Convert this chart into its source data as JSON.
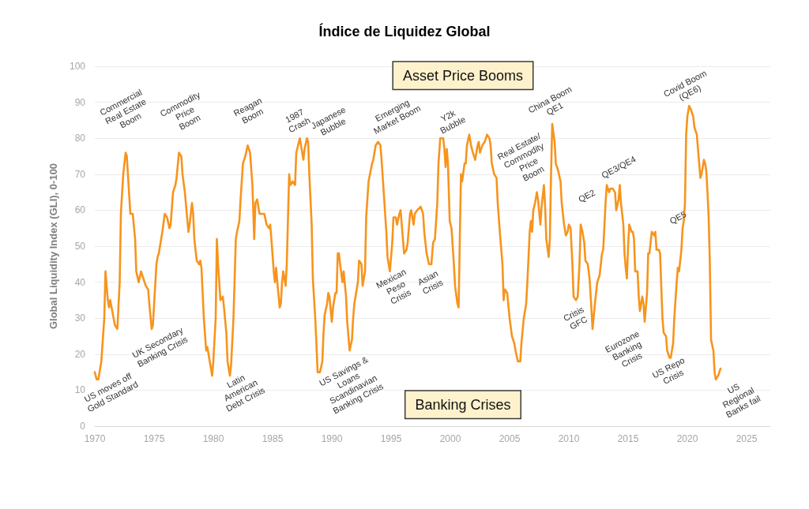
{
  "chart_data": {
    "type": "line",
    "title": "Índice de Liquidez Global",
    "ylabel": "Global Liquidity Index (GLI), 0-100",
    "x": [
      1970,
      1970.15,
      1970.3,
      1970.55,
      1970.8,
      1970.9,
      1971.1,
      1971.2,
      1971.3,
      1971.7,
      1971.9,
      1972.1,
      1972.2,
      1972.4,
      1972.6,
      1972.7,
      1973.0,
      1973.2,
      1973.4,
      1973.5,
      1973.7,
      1973.9,
      1974.0,
      1974.3,
      1974.5,
      1974.6,
      1974.8,
      1974.9,
      1975.2,
      1975.3,
      1975.4,
      1975.7,
      1975.9,
      1976.1,
      1976.3,
      1976.4,
      1976.6,
      1976.8,
      1976.9,
      1977.1,
      1977.3,
      1977.4,
      1977.6,
      1977.9,
      1978.0,
      1978.2,
      1978.3,
      1978.4,
      1978.6,
      1978.8,
      1978.9,
      1979.0,
      1979.2,
      1979.4,
      1979.5,
      1979.7,
      1979.9,
      1980.0,
      1980.2,
      1980.3,
      1980.4,
      1980.6,
      1980.8,
      1980.9,
      1981.1,
      1981.2,
      1981.4,
      1981.5,
      1981.7,
      1981.9,
      1982.0,
      1982.2,
      1982.3,
      1982.5,
      1982.7,
      1982.9,
      1983.1,
      1983.3,
      1983.45,
      1983.55,
      1983.7,
      1983.9,
      1984.1,
      1984.3,
      1984.5,
      1984.7,
      1984.8,
      1984.9,
      1985.1,
      1985.2,
      1985.3,
      1985.4,
      1985.6,
      1985.7,
      1985.8,
      1985.9,
      1986.1,
      1986.2,
      1986.4,
      1986.5,
      1986.7,
      1986.9,
      1987.0,
      1987.3,
      1987.4,
      1987.6,
      1987.7,
      1987.9,
      1988.0,
      1988.1,
      1988.3,
      1988.4,
      1988.6,
      1988.7,
      1988.8,
      1989.0,
      1989.2,
      1989.3,
      1989.4,
      1989.6,
      1989.7,
      1989.8,
      1990.0,
      1990.1,
      1990.3,
      1990.4,
      1990.5,
      1990.6,
      1990.7,
      1990.9,
      1991.0,
      1991.2,
      1991.3,
      1991.5,
      1991.7,
      1991.8,
      1991.9,
      1992.1,
      1992.2,
      1992.3,
      1992.5,
      1992.6,
      1992.8,
      1992.9,
      1993.1,
      1993.4,
      1993.5,
      1993.7,
      1993.9,
      1994.1,
      1994.2,
      1994.4,
      1994.6,
      1994.7,
      1994.9,
      1995.1,
      1995.2,
      1995.4,
      1995.5,
      1995.7,
      1995.8,
      1996.0,
      1996.1,
      1996.3,
      1996.4,
      1996.6,
      1996.7,
      1996.9,
      1997.0,
      1997.2,
      1997.5,
      1997.7,
      1997.8,
      1998.0,
      1998.2,
      1998.4,
      1998.55,
      1998.7,
      1998.9,
      1999.0,
      1999.15,
      1999.4,
      1999.5,
      1999.6,
      1999.7,
      1999.8,
      1999.95,
      2000.1,
      2000.3,
      2000.4,
      2000.6,
      2000.7,
      2000.8,
      2000.9,
      2001.0,
      2001.2,
      2001.3,
      2001.4,
      2001.6,
      2001.75,
      2001.9,
      2002.1,
      2002.3,
      2002.4,
      2002.5,
      2002.7,
      2002.9,
      2003.0,
      2003.1,
      2003.3,
      2003.4,
      2003.5,
      2003.7,
      2003.9,
      2004.0,
      2004.2,
      2004.4,
      2004.5,
      2004.6,
      2004.8,
      2005.0,
      2005.2,
      2005.4,
      2005.5,
      2005.7,
      2005.9,
      2006.0,
      2006.2,
      2006.4,
      2006.5,
      2006.7,
      2006.8,
      2006.9,
      2007.0,
      2007.15,
      2007.3,
      2007.4,
      2007.6,
      2007.7,
      2007.9,
      2008.0,
      2008.1,
      2008.3,
      2008.4,
      2008.5,
      2008.6,
      2008.8,
      2008.9,
      2009.1,
      2009.3,
      2009.4,
      2009.6,
      2009.75,
      2009.9,
      2010.0,
      2010.15,
      2010.3,
      2010.4,
      2010.6,
      2010.75,
      2010.9,
      2011.0,
      2011.15,
      2011.3,
      2011.4,
      2011.6,
      2011.75,
      2011.9,
      2012.0,
      2012.2,
      2012.4,
      2012.6,
      2012.8,
      2012.9,
      2013.1,
      2013.2,
      2013.4,
      2013.5,
      2013.7,
      2013.9,
      2014.0,
      2014.2,
      2014.3,
      2014.4,
      2014.6,
      2014.7,
      2014.8,
      2014.9,
      2015.0,
      2015.1,
      2015.3,
      2015.4,
      2015.5,
      2015.6,
      2015.8,
      2015.9,
      2016.0,
      2016.2,
      2016.3,
      2016.4,
      2016.6,
      2016.7,
      2016.8,
      2017.0,
      2017.2,
      2017.3,
      2017.4,
      2017.6,
      2017.7,
      2017.9,
      2018.0,
      2018.2,
      2018.3,
      2018.5,
      2018.6,
      2018.8,
      2018.9,
      2019.1,
      2019.2,
      2019.3,
      2019.5,
      2019.6,
      2019.7,
      2019.8,
      2019.9,
      2020.0,
      2020.15,
      2020.3,
      2020.5,
      2020.6,
      2020.8,
      2020.9,
      2021.1,
      2021.2,
      2021.4,
      2021.5,
      2021.6,
      2021.7,
      2021.8,
      2021.9,
      2022.0,
      2022.2,
      2022.3,
      2022.4,
      2022.6,
      2022.8
    ],
    "values": [
      15,
      13,
      13,
      18,
      30,
      43,
      35,
      33,
      35,
      28,
      27,
      40,
      59,
      70,
      76,
      75,
      59,
      59,
      52,
      43,
      40,
      43,
      42,
      39,
      38,
      34,
      27,
      28,
      45,
      47,
      48,
      54,
      59,
      58,
      55,
      56,
      65,
      67,
      69,
      76,
      75,
      70,
      65,
      54,
      56,
      62,
      59,
      52,
      46,
      45,
      46,
      44,
      30,
      21,
      22,
      18,
      14,
      18,
      30,
      52,
      45,
      35,
      36,
      33,
      26,
      18,
      14,
      17,
      30,
      52,
      54,
      57,
      63,
      73,
      75,
      78,
      76,
      67,
      52,
      62,
      63,
      59,
      59,
      59,
      56,
      55,
      56,
      52,
      43,
      40,
      44,
      40,
      33,
      34,
      40,
      43,
      39,
      45,
      70,
      67,
      68,
      67,
      76,
      80,
      78,
      74,
      77,
      80,
      79,
      70,
      56,
      41,
      30,
      23,
      15,
      15,
      18,
      26,
      31,
      34,
      37,
      36,
      29,
      33,
      37,
      37,
      48,
      48,
      45,
      40,
      43,
      36,
      29,
      21,
      24,
      30,
      34,
      38,
      40,
      46,
      45,
      39,
      43,
      58,
      68,
      73,
      74,
      78,
      79,
      78,
      74,
      64,
      54,
      47,
      43,
      51,
      58,
      58,
      56,
      59,
      60,
      52,
      48,
      49,
      51,
      59,
      60,
      56,
      59,
      60,
      61,
      59,
      54,
      48,
      45,
      45,
      51,
      52,
      62,
      73,
      80,
      80,
      77,
      72,
      77,
      73,
      57,
      55,
      45,
      39,
      34,
      33,
      52,
      70,
      68,
      73,
      73,
      78,
      81,
      78,
      76,
      74,
      78,
      79,
      76,
      78,
      79,
      80,
      81,
      80,
      78,
      73,
      70,
      69,
      62,
      53,
      45,
      35,
      38,
      37,
      30,
      25,
      23,
      21,
      18,
      18,
      23,
      30,
      34,
      40,
      54,
      57,
      54,
      60,
      62,
      65,
      63,
      56,
      61,
      67,
      61,
      52,
      47,
      52,
      70,
      84,
      79,
      73,
      71,
      68,
      62,
      56,
      53,
      54,
      56,
      55,
      45,
      36,
      35,
      36,
      45,
      56,
      54,
      51,
      46,
      45,
      41,
      33,
      27,
      34,
      40,
      42,
      48,
      49,
      62,
      67,
      65,
      66,
      66,
      65,
      60,
      63,
      67,
      62,
      56,
      48,
      44,
      41,
      50,
      56,
      54,
      54,
      52,
      43,
      43,
      36,
      32,
      36,
      34,
      29,
      37,
      48,
      48,
      54,
      53,
      54,
      49,
      49,
      48,
      30,
      26,
      25,
      21,
      19,
      19,
      23,
      30,
      40,
      44,
      43,
      49,
      55,
      57,
      62,
      81,
      86,
      89,
      88,
      86,
      83,
      81,
      77,
      69,
      70,
      74,
      73,
      71,
      65,
      58,
      45,
      24,
      21,
      15,
      13,
      14,
      16
    ],
    "color": "#f7941d",
    "marker": "none",
    "xlim": [
      1970,
      2027
    ],
    "xticks": [
      1970,
      1975,
      1980,
      1985,
      1990,
      1995,
      2000,
      2005,
      2010,
      2015,
      2020,
      2025
    ],
    "ylim": [
      0,
      100
    ],
    "yticks": [
      0,
      10,
      20,
      30,
      40,
      50,
      60,
      70,
      80,
      90,
      100
    ],
    "grid": "y",
    "annotations": [
      "Asset Price Booms",
      "Banking Crises",
      "US moves off\nGold Standard",
      "Commercial\nReal Estate\nBoom",
      "UK Secondary\nBanking Crisis",
      "Commodity\nPrice\nBoom",
      "Latin\nAmerican\nDebt Crisis",
      "Reagan\nBoom",
      "1987\nCrash",
      "Japanese\nBubble",
      "US Savings &\nLoans\nScandinavian\nBanking Crisis",
      "Emerging\nMarket Boom",
      "Mexican\nPeso\nCrisis",
      "Asian\nCrisis",
      "Y2k\nBubble",
      "Real Estate/\nCommodity\nPrice\nBoom",
      "China Boom\nQE1",
      "Crisis\nGFC",
      "QE2",
      "QE3/QE4",
      "Eurozone\nBanking\nCrisis",
      "US Repo\nCrisis",
      "QE5",
      "Covid Boom\n(QE6)",
      "US\nRegional\nBanks fail"
    ]
  }
}
